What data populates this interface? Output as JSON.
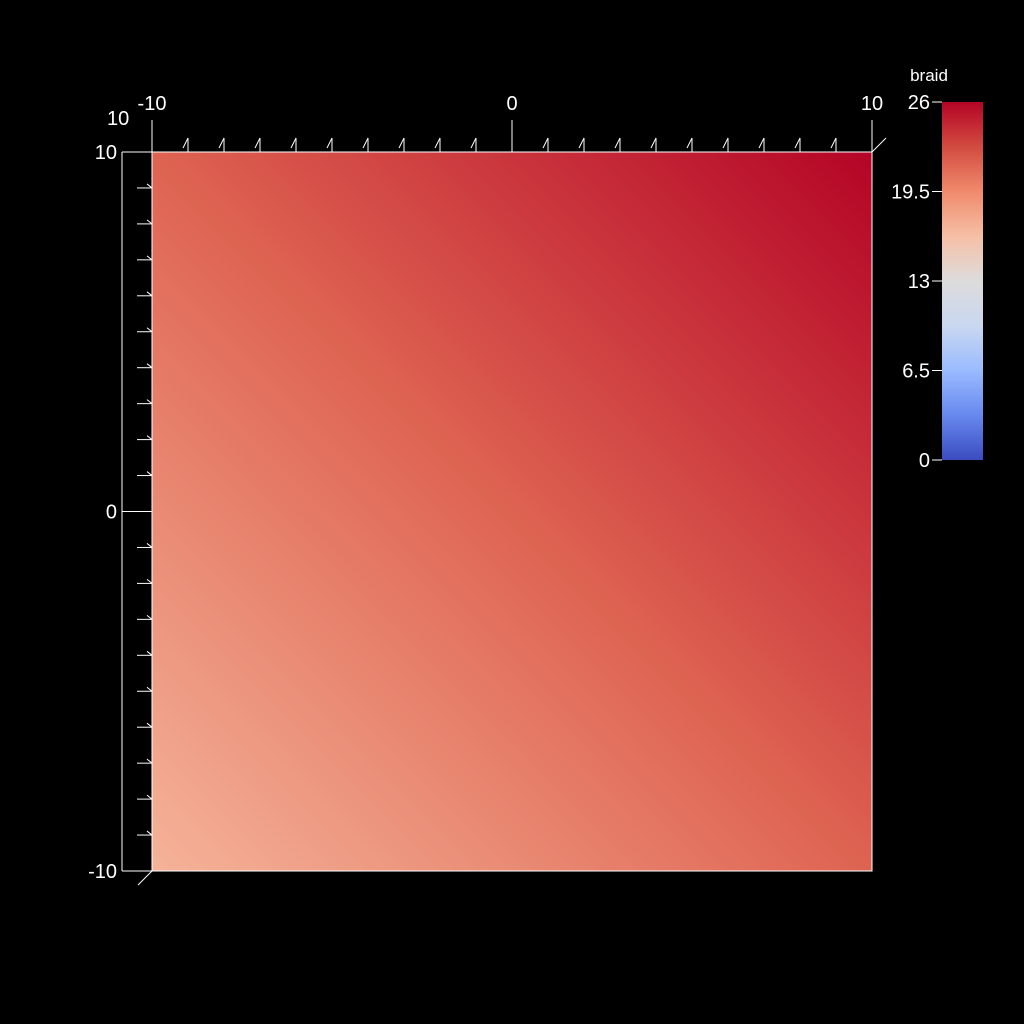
{
  "chart_data": {
    "type": "heatmap",
    "title": "",
    "xlabel": "",
    "ylabel": "",
    "xlim": [
      -10,
      10
    ],
    "ylim": [
      -10,
      10
    ],
    "x_tick_labels": [
      {
        "value": -10,
        "label": "-10"
      },
      {
        "value": 0,
        "label": "0"
      },
      {
        "value": 10,
        "label": "10"
      }
    ],
    "y_tick_labels": [
      {
        "value": 10,
        "label": "10"
      },
      {
        "value": 0,
        "label": "0"
      },
      {
        "value": -10,
        "label": "-10"
      }
    ],
    "z_tick_label": "10",
    "field": {
      "name": "braid",
      "corner_values": {
        "bottom_left": 17.0,
        "bottom_right": 21.5,
        "top_left": 21.5,
        "top_right": 26.0
      }
    },
    "colorbar": {
      "title": "braid",
      "range": [
        0,
        26
      ],
      "tick_labels": [
        {
          "value": 26,
          "label": "26"
        },
        {
          "value": 19.5,
          "label": "19.5"
        },
        {
          "value": 13,
          "label": "13"
        },
        {
          "value": 6.5,
          "label": "6.5"
        },
        {
          "value": 0,
          "label": "0"
        }
      ],
      "colormap": [
        "#3b4cc0",
        "#6788ee",
        "#9abbff",
        "#c9d7f0",
        "#dddcdc",
        "#f6bfa6",
        "#f08a6c",
        "#d24b40",
        "#b40426"
      ]
    },
    "grid": false,
    "legend_position": "top-right"
  }
}
